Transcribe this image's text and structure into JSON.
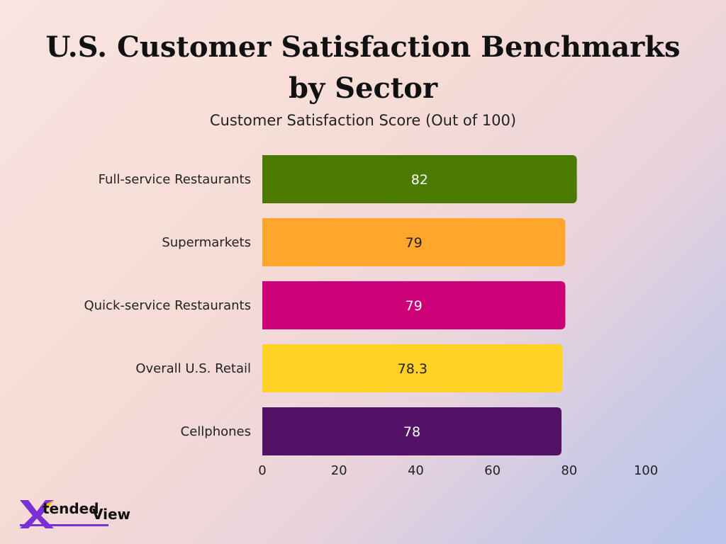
{
  "chart_data": {
    "type": "bar",
    "orientation": "horizontal",
    "title": "U.S. Customer Satisfaction Benchmarks by Sector",
    "subtitle": "Customer Satisfaction Score (Out of 100)",
    "categories": [
      "Full-service Restaurants",
      "Supermarkets",
      "Quick-service Restaurants",
      "Overall U.S. Retail",
      "Cellphones"
    ],
    "values": [
      82,
      79,
      79,
      78.3,
      78
    ],
    "value_labels": [
      "82",
      "79",
      "79",
      "78.3",
      "78"
    ],
    "bar_colors": [
      "#4a7a00",
      "#ffa62b",
      "#cc0077",
      "#ffd324",
      "#541266"
    ],
    "label_colors": [
      "#ffffff",
      "#222222",
      "#ffffff",
      "#222222",
      "#ffffff"
    ],
    "xlim": [
      0,
      100
    ],
    "x_ticks": [
      0,
      20,
      40,
      60,
      80,
      100
    ],
    "grid": false,
    "legend": "none"
  },
  "logo": {
    "part_x": "X",
    "part_tended": "tended",
    "part_view": "View",
    "accent_color": "#7b2fd6"
  }
}
